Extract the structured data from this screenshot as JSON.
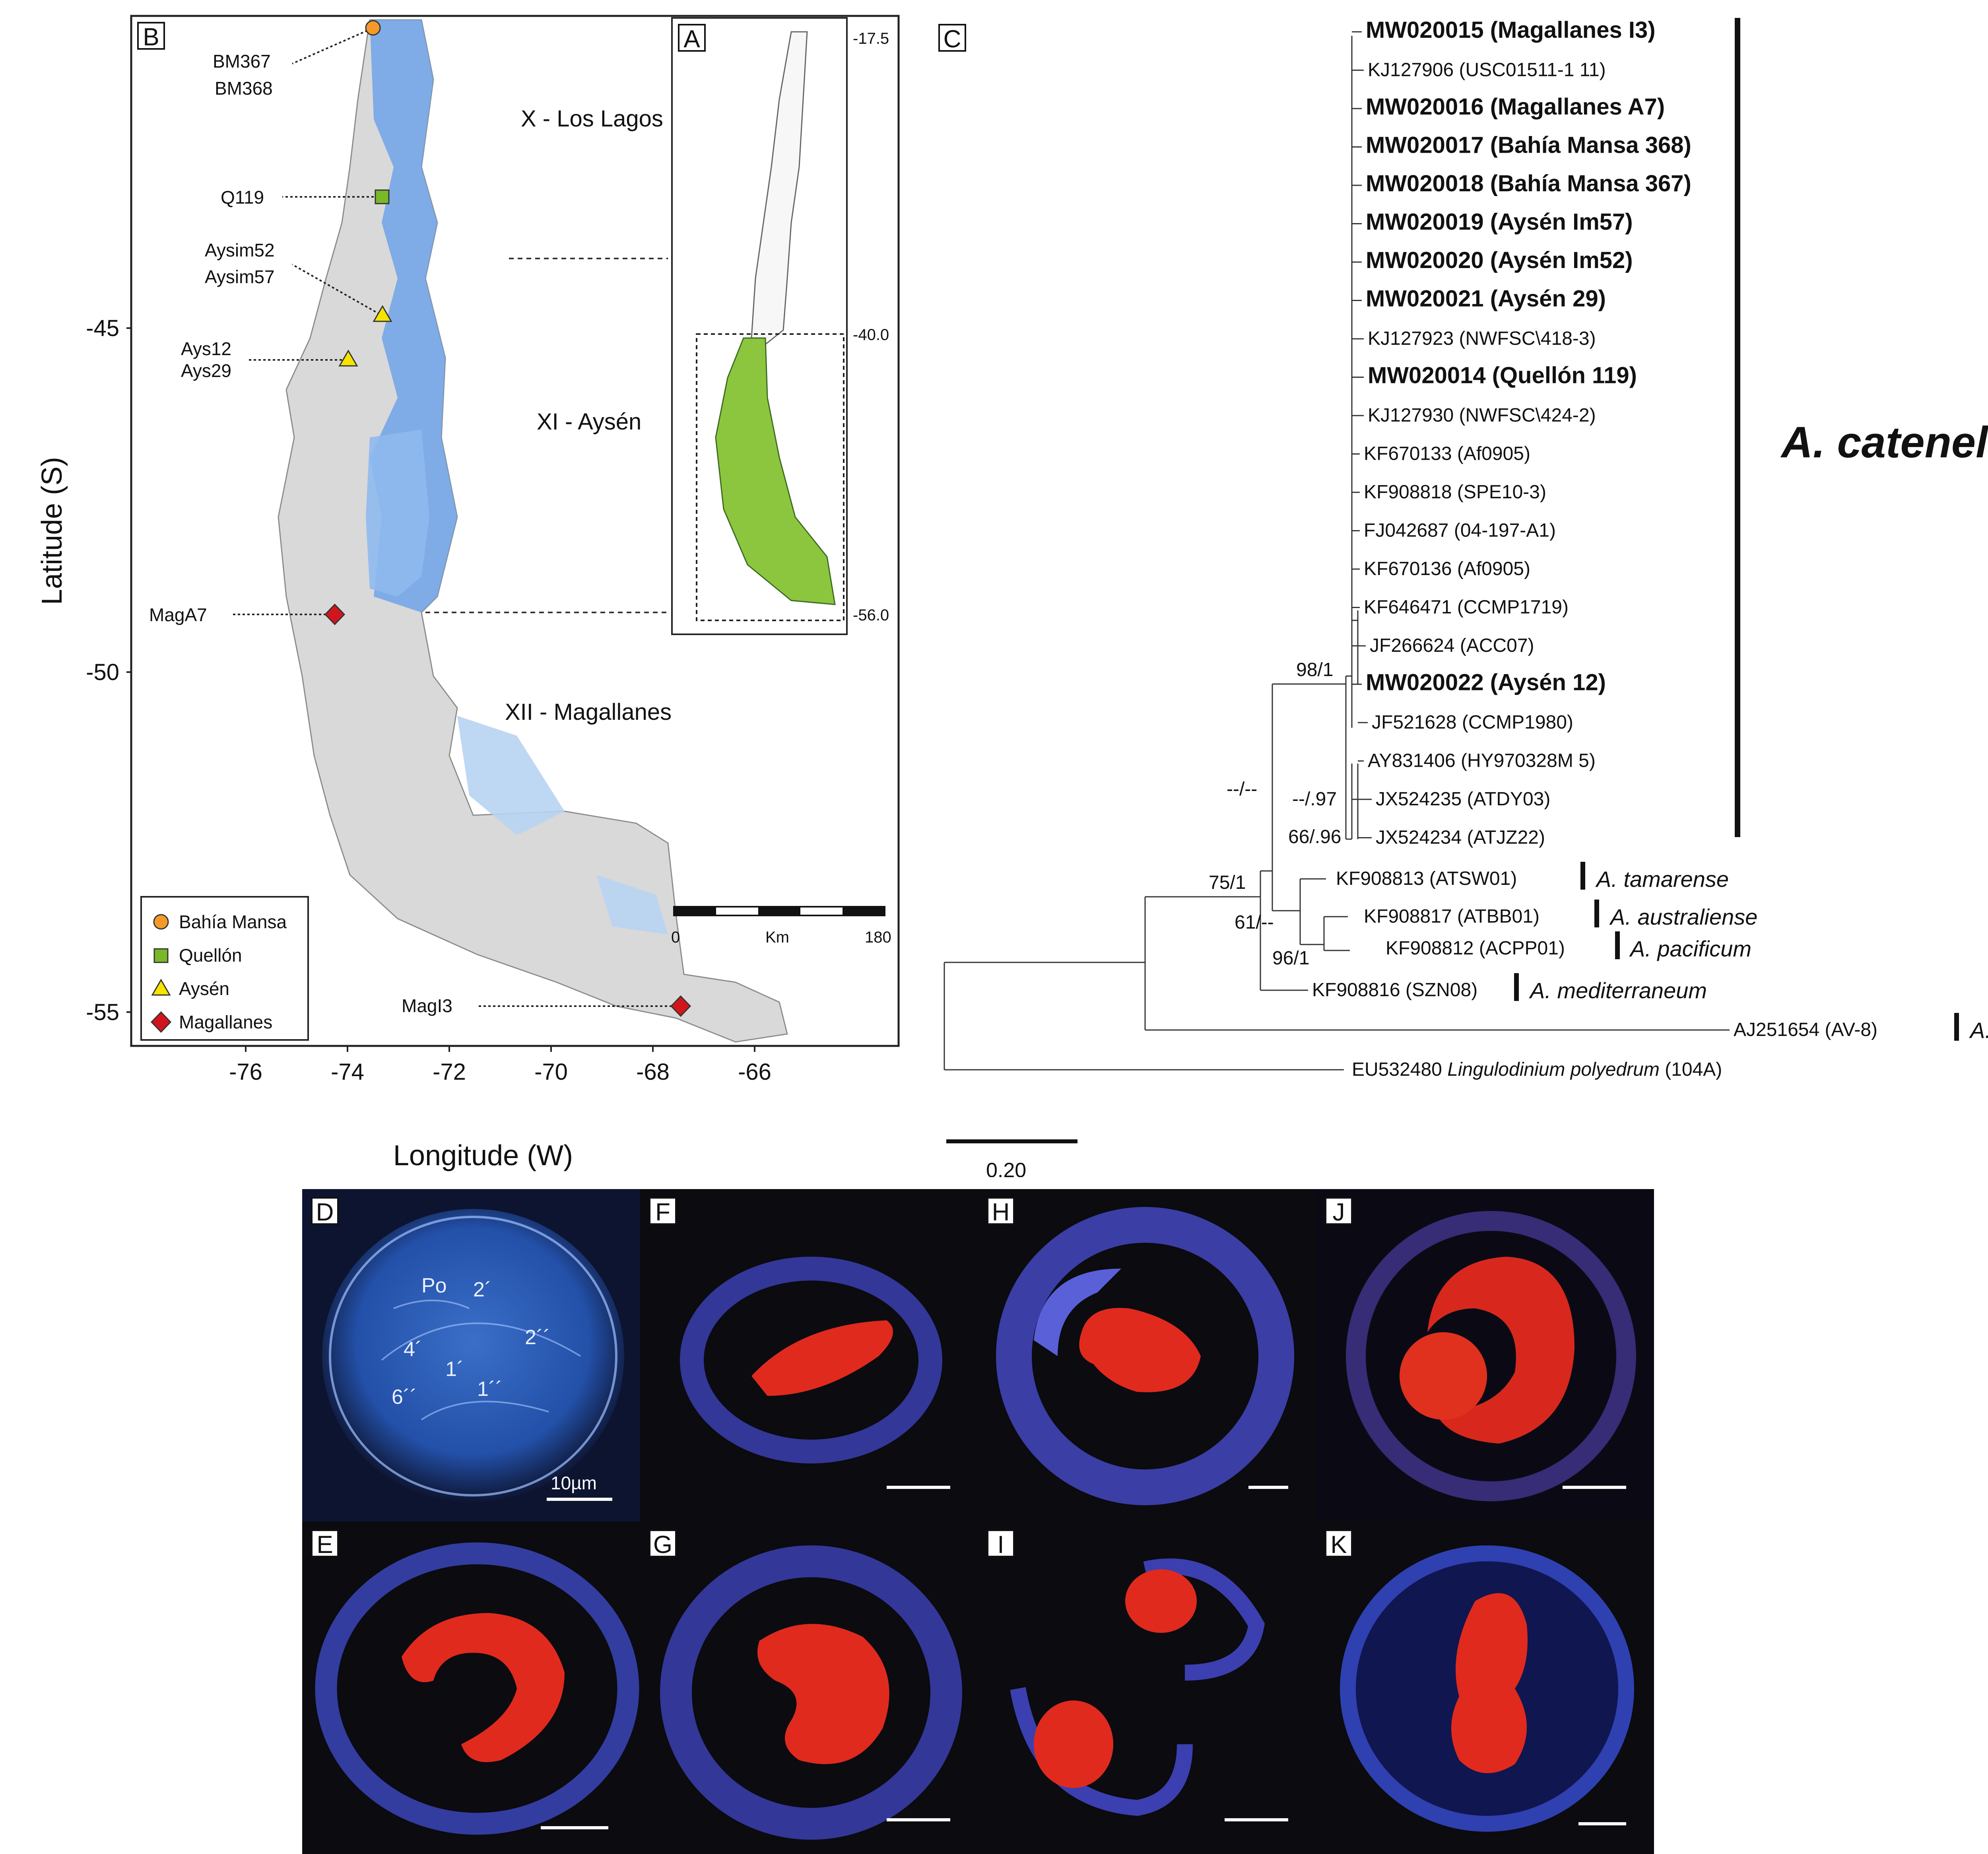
{
  "panels": {
    "a": "A",
    "b": "B",
    "c": "C",
    "d": "D",
    "e": "E",
    "f": "F",
    "g": "G",
    "h": "H",
    "i": "I",
    "j": "J",
    "k": "K"
  },
  "map": {
    "ylabel": "Latitude (S)",
    "xlabel": "Longitude (W)",
    "yticks": [
      "-45",
      "-50",
      "-55"
    ],
    "xticks": [
      "-76",
      "-74",
      "-72",
      "-70",
      "-68",
      "-66"
    ],
    "regions": [
      "X - Los Lagos",
      "XI - Aysén",
      "XII - Magallanes"
    ],
    "sites": [
      {
        "label1": "BM367",
        "label2": "BM368"
      },
      {
        "label1": "Q119",
        "label2": ""
      },
      {
        "label1": "Aysim52",
        "label2": "Aysim57"
      },
      {
        "label1": "Ays12",
        "label2": "Ays29"
      },
      {
        "label1": "MagA7",
        "label2": ""
      },
      {
        "label1": "MagI3",
        "label2": ""
      }
    ],
    "legend": [
      {
        "label": "Bahía Mansa",
        "color": "#f39a2b",
        "shape": "circle"
      },
      {
        "label": "Quellón",
        "color": "#7ab828",
        "shape": "square"
      },
      {
        "label": "Aysén",
        "color": "#f6e400",
        "shape": "triangle"
      },
      {
        "label": "Magallanes",
        "color": "#d0161c",
        "shape": "diamond"
      }
    ],
    "scalebar": {
      "start": "0",
      "unit": "Km",
      "end": "180"
    },
    "inset": {
      "lat_top": "-17.5",
      "lat_mid": "-40.0",
      "lat_bottom": "-56.0"
    }
  },
  "tree": {
    "clade_label": "A. catenella",
    "scale": "0.20",
    "support": [
      "98/1",
      "--/--",
      "--/.97",
      "66/.96",
      "75/1",
      "61/--",
      "96/1"
    ],
    "taxa": [
      {
        "acc": "MW020015",
        "name": "(Magallanes I3)",
        "bold": true
      },
      {
        "acc": "KJ127906",
        "name": "(USC01511-1 11)",
        "bold": false
      },
      {
        "acc": "MW020016",
        "name": "(Magallanes A7)",
        "bold": true
      },
      {
        "acc": "MW020017",
        "name": "(Bahía Mansa 368)",
        "bold": true
      },
      {
        "acc": "MW020018",
        "name": "(Bahía Mansa 367)",
        "bold": true
      },
      {
        "acc": "MW020019",
        "name": "(Aysén Im57)",
        "bold": true
      },
      {
        "acc": "MW020020",
        "name": "(Aysén Im52)",
        "bold": true
      },
      {
        "acc": "MW020021",
        "name": "(Aysén 29)",
        "bold": true
      },
      {
        "acc": "KJ127923",
        "name": "(NWFSC\\418-3)",
        "bold": false
      },
      {
        "acc": "MW020014",
        "name": "(Quellón 119)",
        "bold": true
      },
      {
        "acc": "KJ127930",
        "name": "(NWFSC\\424-2)",
        "bold": false
      },
      {
        "acc": "KF670133",
        "name": "(Af0905)",
        "bold": false
      },
      {
        "acc": "KF908818",
        "name": "(SPE10-3)",
        "bold": false
      },
      {
        "acc": "FJ042687",
        "name": "(04-197-A1)",
        "bold": false
      },
      {
        "acc": "KF670136",
        "name": "(Af0905)",
        "bold": false
      },
      {
        "acc": "KF646471",
        "name": "(CCMP1719)",
        "bold": false
      },
      {
        "acc": "JF266624",
        "name": "(ACC07)",
        "bold": false
      },
      {
        "acc": "MW020022",
        "name": "(Aysén 12)",
        "bold": true
      },
      {
        "acc": "JF521628",
        "name": "(CCMP1980)",
        "bold": false
      },
      {
        "acc": "AY831406",
        "name": "(HY970328M 5)",
        "bold": false
      },
      {
        "acc": "JX524235",
        "name": "(ATDY03)",
        "bold": false
      },
      {
        "acc": "JX524234",
        "name": "(ATJZ22)",
        "bold": false
      }
    ],
    "outgroups": [
      {
        "acc": "KF908813",
        "name": "(ATSW01)",
        "species": "A. tamarense"
      },
      {
        "acc": "KF908817",
        "name": "(ATBB01)",
        "species": "A. australiense"
      },
      {
        "acc": "KF908812",
        "name": "(ACPP01)",
        "species": "A. pacificum"
      },
      {
        "acc": "KF908816",
        "name": "(SZN08)",
        "species": "A. mediterraneum"
      },
      {
        "acc": "AJ251654",
        "name": "(AV-8)",
        "species": "A. taylorii"
      }
    ],
    "root_taxon": {
      "acc": "EU532480",
      "genus": "Lingulodinium polyedrum",
      "strain": "(104A)"
    }
  },
  "micrograph_d": {
    "plates": [
      "Po",
      "2´",
      "2´´",
      "4´",
      "1´",
      "1´´",
      "6´´"
    ],
    "scalebar": "10µm"
  }
}
